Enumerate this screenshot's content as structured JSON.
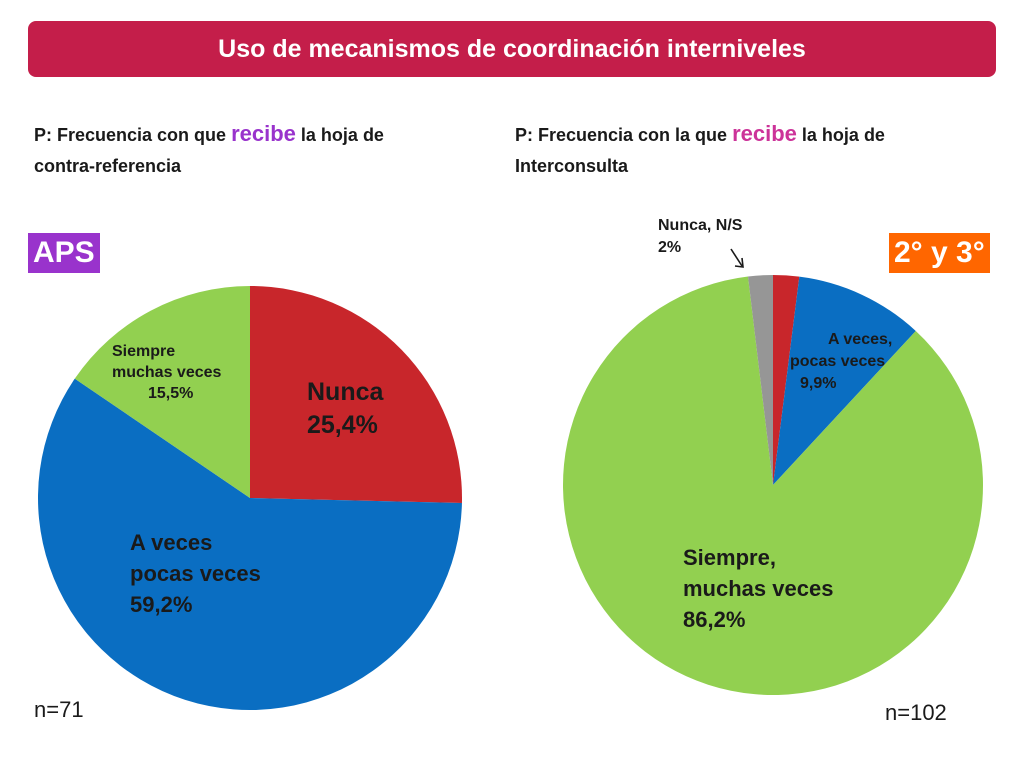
{
  "title": "Uso de mecanismos de coordinación interniveles",
  "colors": {
    "banner": "#c41e4a",
    "red": "#c8262b",
    "blue": "#0a6ec2",
    "green": "#92d050",
    "gray": "#969696",
    "aps_tag": "#9933cc",
    "sec_tag": "#ff6600"
  },
  "left": {
    "question_pre": "P: Frecuencia con que",
    "question_emph": "recibe",
    "question_post": "la hoja de contra-referencia",
    "tag": "APS",
    "n": "n=71"
  },
  "right": {
    "question_pre": "P: Frecuencia con la que",
    "question_emph": "recibe",
    "question_post": "la hoja de Interconsulta",
    "tag": "2° y 3°",
    "n": "n=102"
  },
  "chart_data": [
    {
      "type": "pie",
      "title": "P: Frecuencia con que recibe la hoja de contra-referencia",
      "slices": [
        {
          "label_lines": [
            "Nunca",
            "25,4%"
          ],
          "value": 25.4,
          "color": "#c8262b"
        },
        {
          "label_lines": [
            "A veces",
            "pocas veces",
            "59,2%"
          ],
          "value": 59.2,
          "color": "#0a6ec2"
        },
        {
          "label_lines": [
            "Siempre",
            "muchas veces",
            "15,5%"
          ],
          "value": 15.5,
          "color": "#92d050"
        }
      ]
    },
    {
      "type": "pie",
      "title": "P: Frecuencia con la que recibe la hoja de Interconsulta",
      "slices": [
        {
          "label_lines": [
            "Nunca, N/S",
            "2%"
          ],
          "value": 2.0,
          "color": "#c8262b"
        },
        {
          "label_lines": [
            "A veces,",
            "pocas veces",
            "9,9%"
          ],
          "value": 9.9,
          "color": "#0a6ec2"
        },
        {
          "label_lines": [
            "Siempre,",
            "muchas veces",
            "86,2%"
          ],
          "value": 86.2,
          "color": "#92d050"
        },
        {
          "label_lines": [],
          "value": 1.9,
          "color": "#969696"
        }
      ]
    }
  ]
}
